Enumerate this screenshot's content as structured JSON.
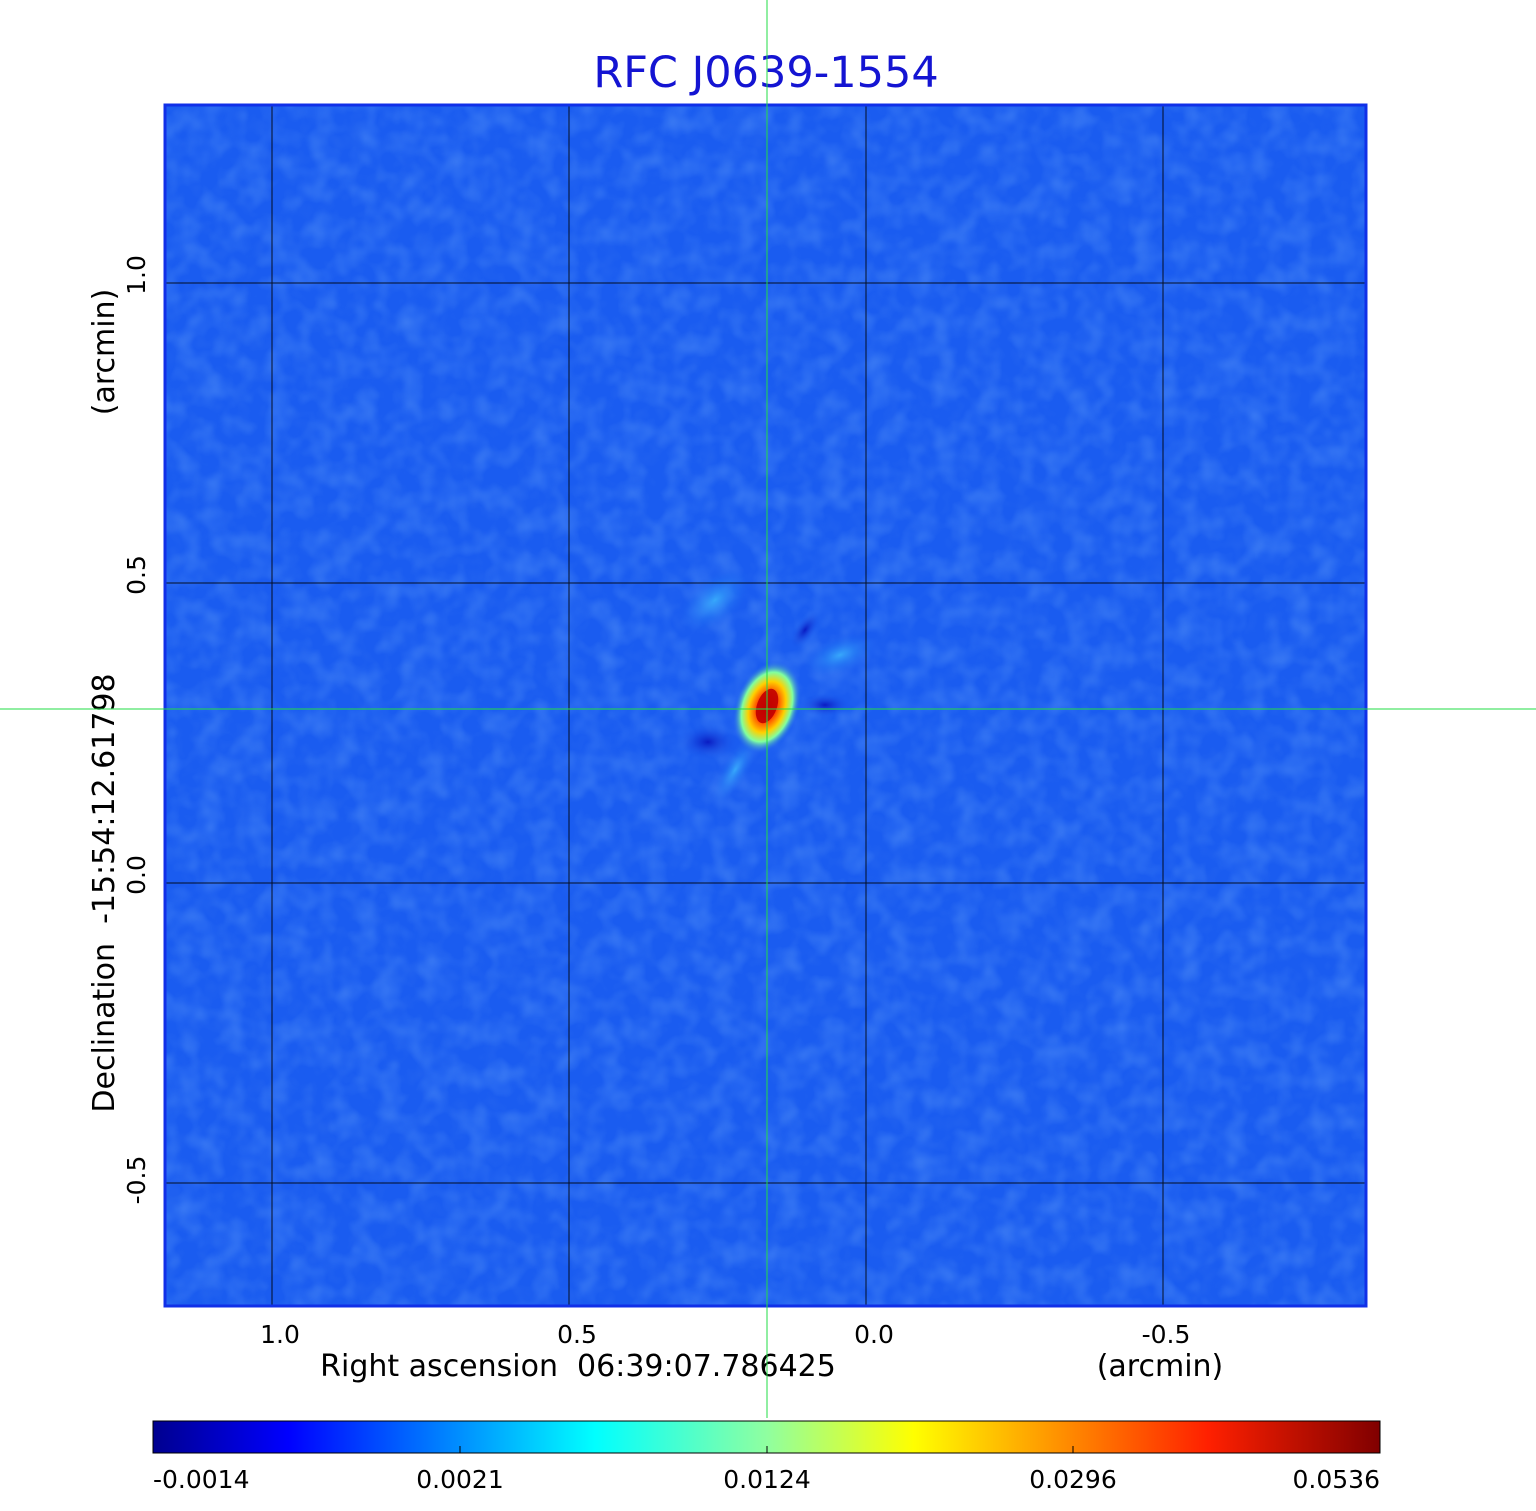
{
  "figure": {
    "title": "RFC J0639-1554",
    "x_axis_label": "Right ascension  06:39:07.786425",
    "x_axis_unit": "(arcmin)",
    "y_axis_label": "Declination  -15:54:12.61798",
    "y_axis_unit": "(arcmin)"
  },
  "x_ticks": [
    "1.0",
    "0.5",
    "0.0",
    "-0.5"
  ],
  "y_ticks": [
    "1.0",
    "0.5",
    "0.0",
    "-0.5"
  ],
  "colorbar": {
    "tick_labels": [
      "-0.0014",
      "0.0021",
      "0.0124",
      "0.0296",
      "0.0536"
    ],
    "colormap": "jet"
  },
  "image": {
    "background_color": "#1a5cf0",
    "crosshair_color": "#22dd44",
    "grid_color": "#000000",
    "frame_color": "#1030e8",
    "title_color": "#1414d2"
  }
}
